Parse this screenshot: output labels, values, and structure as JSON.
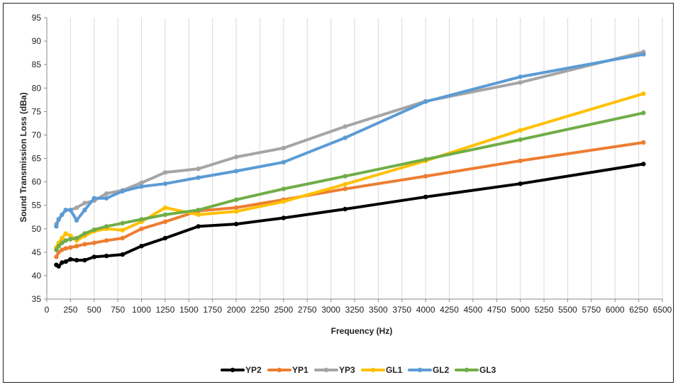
{
  "chart_data": {
    "type": "line",
    "title": "",
    "xlabel": "Frequency (Hz)",
    "ylabel": "Sound Transmission Loss (dBa)",
    "xlim": [
      0,
      6500
    ],
    "ylim": [
      35,
      95
    ],
    "x_ticks": [
      0,
      250,
      500,
      750,
      1000,
      1250,
      1500,
      1750,
      2000,
      2250,
      2500,
      2750,
      3000,
      3250,
      3500,
      3750,
      4000,
      4250,
      4500,
      4750,
      5000,
      5250,
      5500,
      5750,
      6000,
      6250,
      6500
    ],
    "y_ticks": [
      35,
      40,
      45,
      50,
      55,
      60,
      65,
      70,
      75,
      80,
      85,
      90,
      95
    ],
    "grid": "vertical",
    "legend_position": "bottom",
    "x": [
      100,
      125,
      160,
      200,
      250,
      315,
      400,
      500,
      630,
      800,
      1000,
      1250,
      1600,
      2000,
      2500,
      3150,
      4000,
      5000,
      6300
    ],
    "series": [
      {
        "name": "YP2",
        "color": "#000000",
        "values": [
          42.3,
          42.0,
          42.8,
          43.0,
          43.5,
          43.3,
          43.3,
          44.0,
          44.2,
          44.5,
          46.3,
          48.0,
          50.5,
          51.0,
          52.3,
          54.2,
          56.8,
          59.6,
          63.8
        ]
      },
      {
        "name": "YP1",
        "color": "#ED7D31",
        "values": [
          44.0,
          45.0,
          45.5,
          45.8,
          46.0,
          46.3,
          46.7,
          47.0,
          47.5,
          48.0,
          50.0,
          51.5,
          53.8,
          54.5,
          56.2,
          58.5,
          61.2,
          64.5,
          68.4
        ]
      },
      {
        "name": "YP3",
        "color": "#A5A5A5",
        "values": [
          51.0,
          52.0,
          53.0,
          54.0,
          54.0,
          54.5,
          55.5,
          56.0,
          57.5,
          58.2,
          59.8,
          62.0,
          62.8,
          65.3,
          67.2,
          71.8,
          77.2,
          81.2,
          87.7
        ]
      },
      {
        "name": "GL1",
        "color": "#FFC000",
        "values": [
          46.0,
          47.0,
          48.0,
          49.0,
          48.5,
          47.5,
          48.5,
          49.5,
          50.0,
          49.7,
          51.5,
          54.5,
          53.0,
          53.7,
          55.8,
          59.5,
          64.5,
          71.0,
          78.8
        ]
      },
      {
        "name": "GL2",
        "color": "#5B9BD5",
        "values": [
          50.5,
          52.0,
          53.0,
          54.0,
          54.0,
          51.8,
          54.0,
          56.5,
          56.5,
          58.0,
          59.0,
          59.6,
          60.9,
          62.3,
          64.2,
          69.4,
          77.1,
          82.4,
          87.2
        ]
      },
      {
        "name": "GL3",
        "color": "#70AD47",
        "values": [
          45.5,
          46.3,
          47.0,
          47.5,
          47.8,
          48.0,
          49.0,
          49.8,
          50.5,
          51.2,
          52.0,
          53.0,
          54.0,
          56.2,
          58.5,
          61.2,
          64.8,
          69.0,
          74.7
        ]
      }
    ]
  }
}
